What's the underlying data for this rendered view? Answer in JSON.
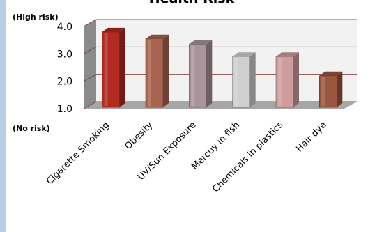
{
  "chart_data": {
    "type": "bar",
    "title": "Health Risk",
    "ylim": [
      1.0,
      4.0
    ],
    "y_ticks": [
      "1.0",
      "2.0",
      "3.0",
      "4.0"
    ],
    "y_top_note": "(High risk)",
    "y_bottom_note": "(No risk)",
    "categories": [
      "Cigarette Smoking",
      "Obesity",
      "UV/Sun Exposure",
      "Mercuy in fish",
      "Chemicals in plastics",
      "Hair dye"
    ],
    "values": [
      3.8,
      3.55,
      3.35,
      2.9,
      2.9,
      2.2
    ],
    "colors": [
      "#b22a22",
      "#a8644e",
      "#a8949a",
      "#cfcfcf",
      "#cf9d9d",
      "#9a563f"
    ],
    "grid": true,
    "style": "3d-cylinder-columns"
  }
}
